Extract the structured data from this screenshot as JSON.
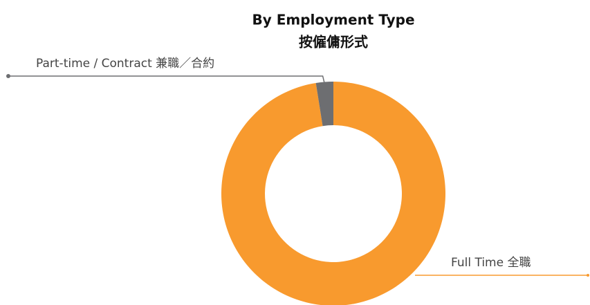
{
  "chart_data": {
    "type": "donut",
    "title": "By Employment Type",
    "subtitle": "按僱傭形式",
    "categories": [
      "Full Time 全職",
      "Part-time / Contract 兼職／合約"
    ],
    "values": [
      97.5,
      2.5
    ],
    "colors": [
      "#f89a2e",
      "#6d6e71"
    ]
  }
}
